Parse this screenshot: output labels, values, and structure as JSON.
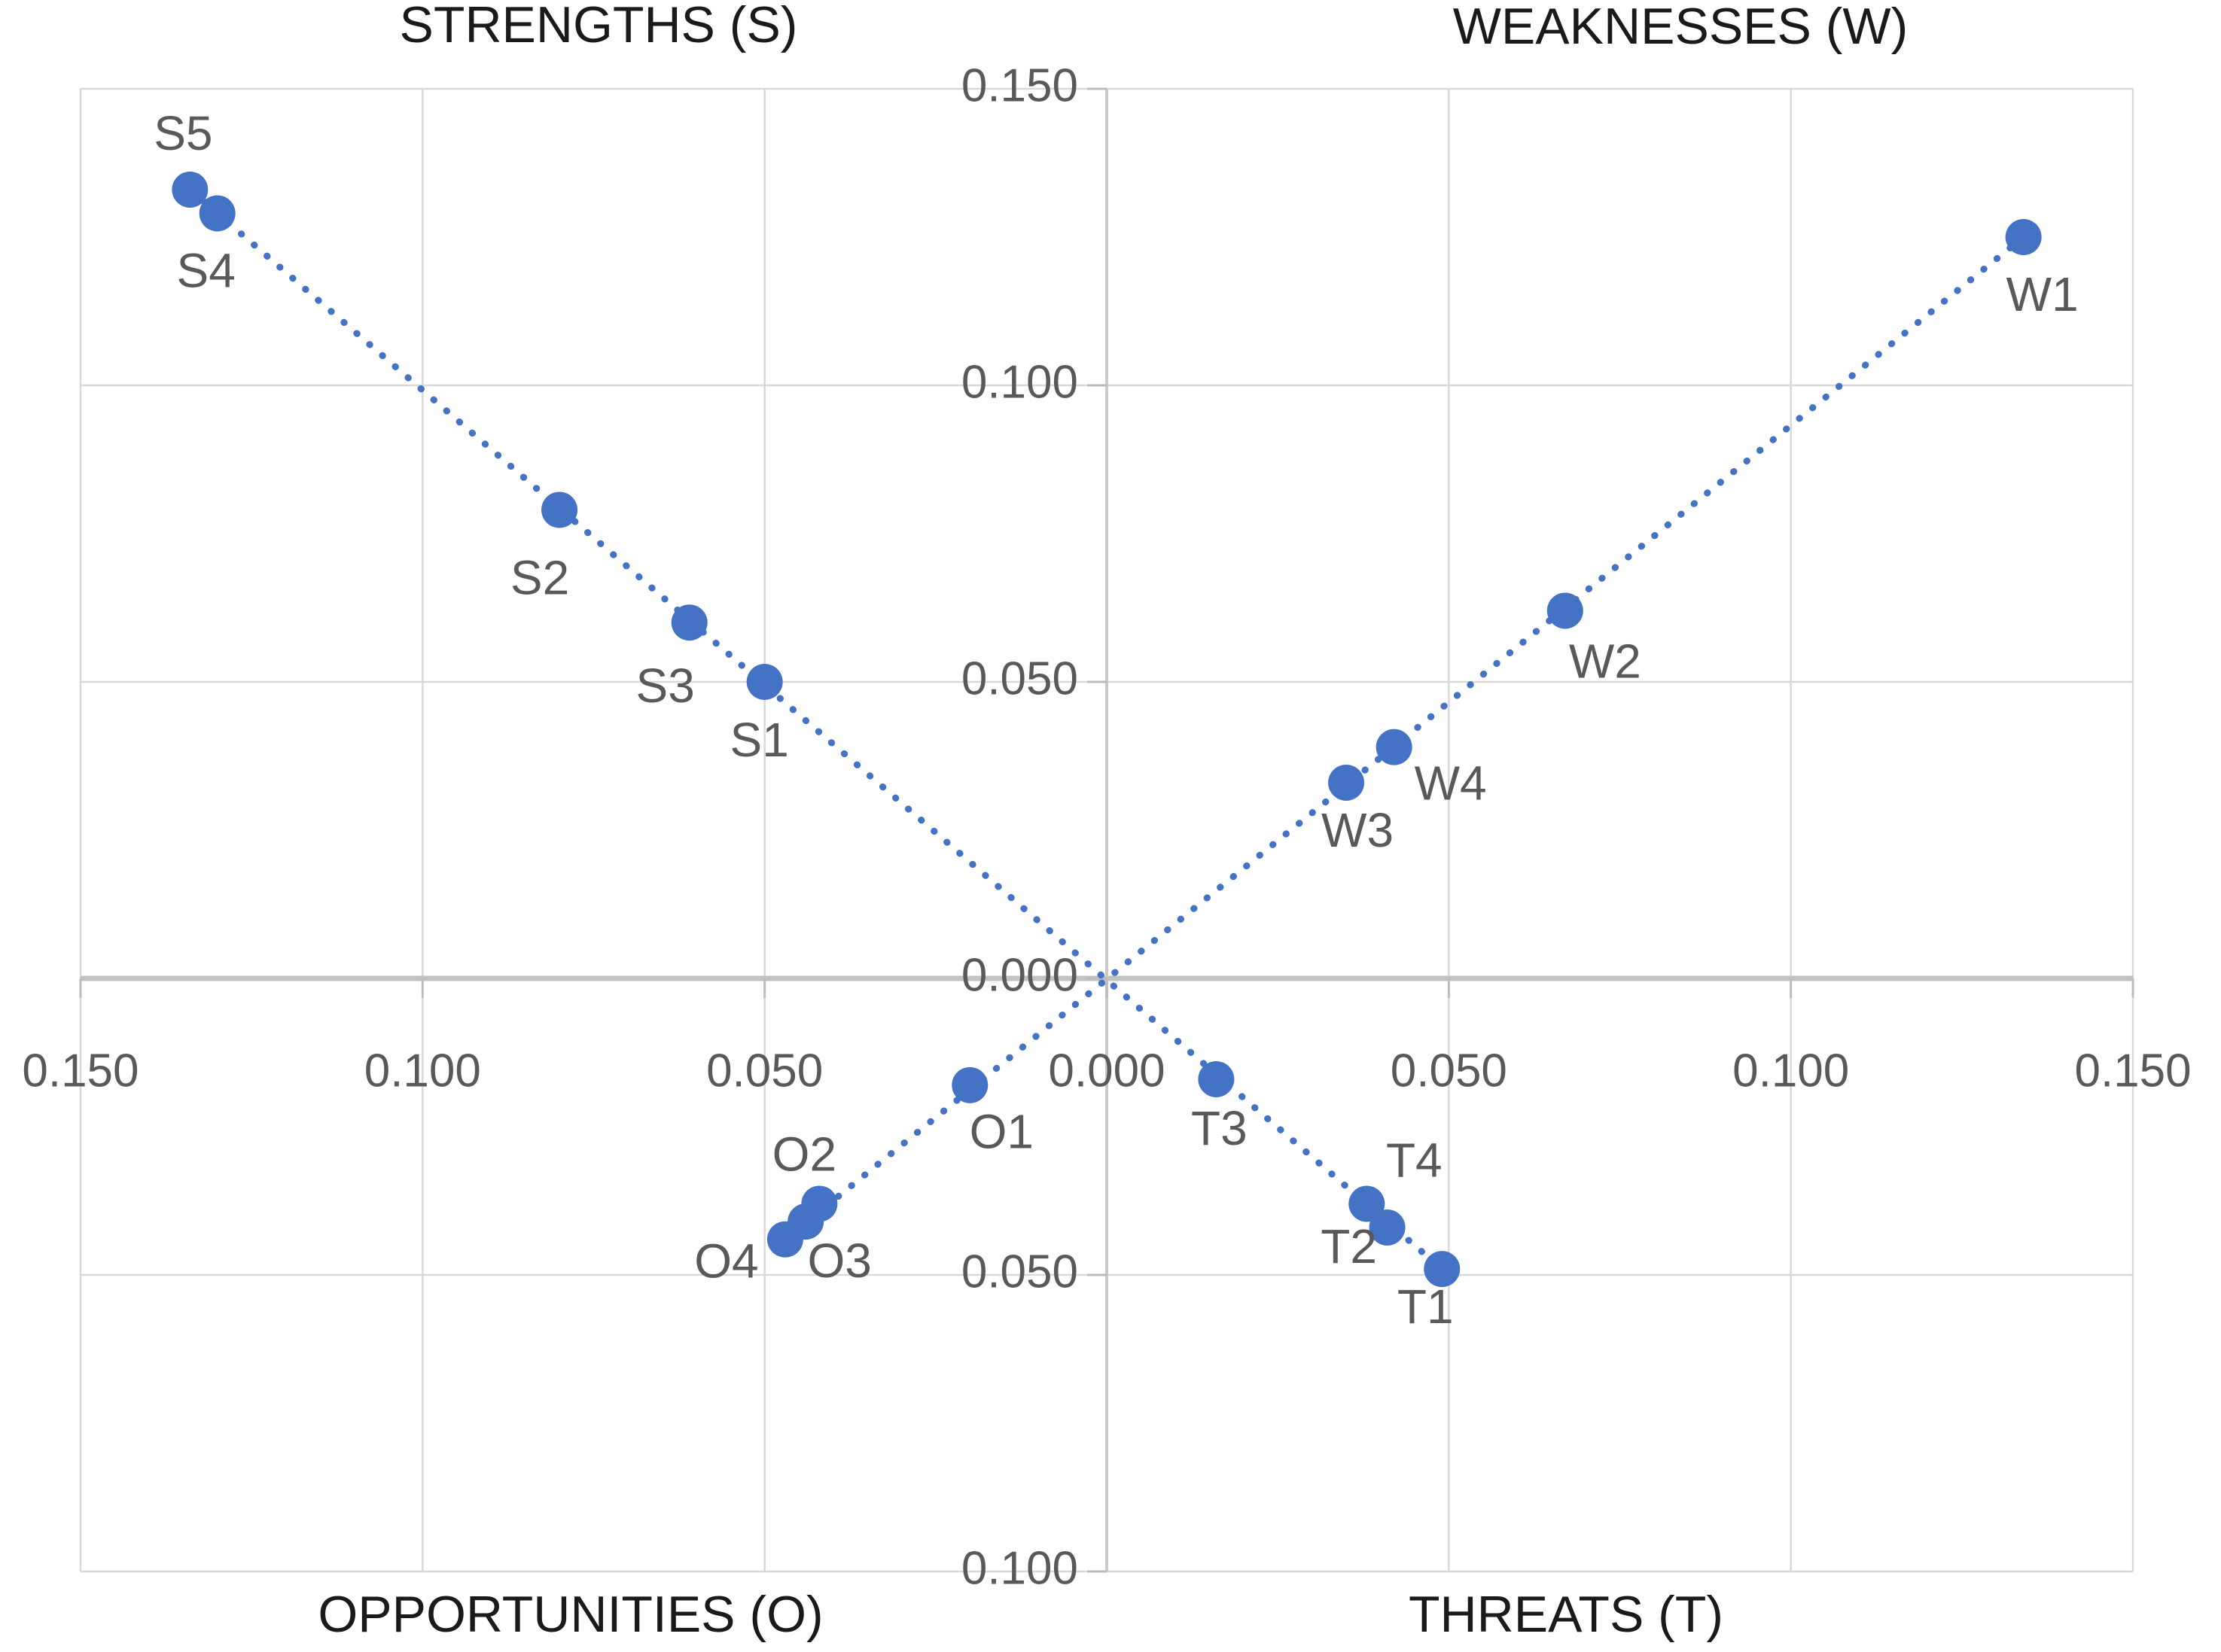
{
  "chart_data": {
    "type": "scatter",
    "quadrant_titles": {
      "top_left": "STRENGTHS (S)",
      "top_right": "WEAKNESSES (W)",
      "bottom_left": "OPPORTUNITIES (O)",
      "bottom_right": "THREATS (T)"
    },
    "axes": {
      "x_range": [
        -0.15,
        0.15
      ],
      "y_range": [
        -0.1,
        0.15
      ],
      "grid": true,
      "x_ticks": [
        {
          "value": -0.15,
          "label": "0.150"
        },
        {
          "value": -0.1,
          "label": "0.100"
        },
        {
          "value": -0.05,
          "label": "0.050"
        },
        {
          "value": 0.0,
          "label": "0.000"
        },
        {
          "value": 0.05,
          "label": "0.050"
        },
        {
          "value": 0.1,
          "label": "0.100"
        },
        {
          "value": 0.15,
          "label": "0.150"
        }
      ],
      "y_ticks": [
        {
          "value": 0.15,
          "label": "0.150"
        },
        {
          "value": 0.1,
          "label": "0.100"
        },
        {
          "value": 0.05,
          "label": "0.050"
        },
        {
          "value": 0.0,
          "label": "0.000"
        },
        {
          "value": -0.05,
          "label": "0.050"
        },
        {
          "value": -0.1,
          "label": "0.100"
        }
      ]
    },
    "series": [
      {
        "name": "Strengths",
        "points": [
          {
            "label": "S1",
            "x": -0.05,
            "y": 0.05,
            "label_dx": -7,
            "label_dy": 82
          },
          {
            "label": "S2",
            "x": -0.08,
            "y": 0.079,
            "label_dx": -26,
            "label_dy": 95
          },
          {
            "label": "S3",
            "x": -0.061,
            "y": 0.06,
            "label_dx": -32,
            "label_dy": 89
          },
          {
            "label": "S4",
            "x": -0.13,
            "y": 0.129,
            "label_dx": -15,
            "label_dy": 81
          },
          {
            "label": "S5",
            "x": -0.134,
            "y": 0.133,
            "label_dx": -9,
            "label_dy": -70
          }
        ]
      },
      {
        "name": "Weaknesses",
        "points": [
          {
            "label": "W1",
            "x": 0.134,
            "y": 0.125,
            "label_dx": 25,
            "label_dy": 81
          },
          {
            "label": "W2",
            "x": 0.067,
            "y": 0.062,
            "label_dx": 53,
            "label_dy": 72
          },
          {
            "label": "W3",
            "x": 0.035,
            "y": 0.033,
            "label_dx": 15,
            "label_dy": 68
          },
          {
            "label": "W4",
            "x": 0.042,
            "y": 0.039,
            "label_dx": 75,
            "label_dy": 53
          }
        ]
      },
      {
        "name": "Opportunities",
        "points": [
          {
            "label": "O1",
            "x": -0.02,
            "y": -0.018,
            "label_dx": 42,
            "label_dy": 67
          },
          {
            "label": "O2",
            "x": -0.042,
            "y": -0.038,
            "label_dx": -20,
            "label_dy": -61
          },
          {
            "label": "O3",
            "x": -0.044,
            "y": -0.041,
            "label_dx": 45,
            "label_dy": 57
          },
          {
            "label": "O4",
            "x": -0.047,
            "y": -0.044,
            "label_dx": -78,
            "label_dy": 34
          }
        ]
      },
      {
        "name": "Threats",
        "points": [
          {
            "label": "T1",
            "x": 0.049,
            "y": -0.049,
            "label_dx": -22,
            "label_dy": 55
          },
          {
            "label": "T2",
            "x": 0.041,
            "y": -0.042,
            "label_dx": -51,
            "label_dy": 30
          },
          {
            "label": "T3",
            "x": 0.016,
            "y": -0.017,
            "label_dx": 4,
            "label_dy": 70
          },
          {
            "label": "T4",
            "x": 0.038,
            "y": -0.038,
            "label_dx": 63,
            "label_dy": -53
          }
        ]
      }
    ],
    "trendlines": [
      {
        "x1": -0.134,
        "y1": 0.133,
        "x2": 0.049,
        "y2": -0.049
      },
      {
        "x1": 0.134,
        "y1": 0.125,
        "x2": -0.047,
        "y2": -0.044
      }
    ]
  },
  "colors": {
    "point": "#4472c4",
    "trendline": "#4472c4",
    "grid": "#d9d9d9",
    "axis_horizontal": "#c2c2c2",
    "axis_vertical": "#c9c9c9",
    "tick": "#bcbcbc",
    "tick_label": "#595959",
    "point_label": "#595959",
    "title": "#1a1a1a"
  }
}
